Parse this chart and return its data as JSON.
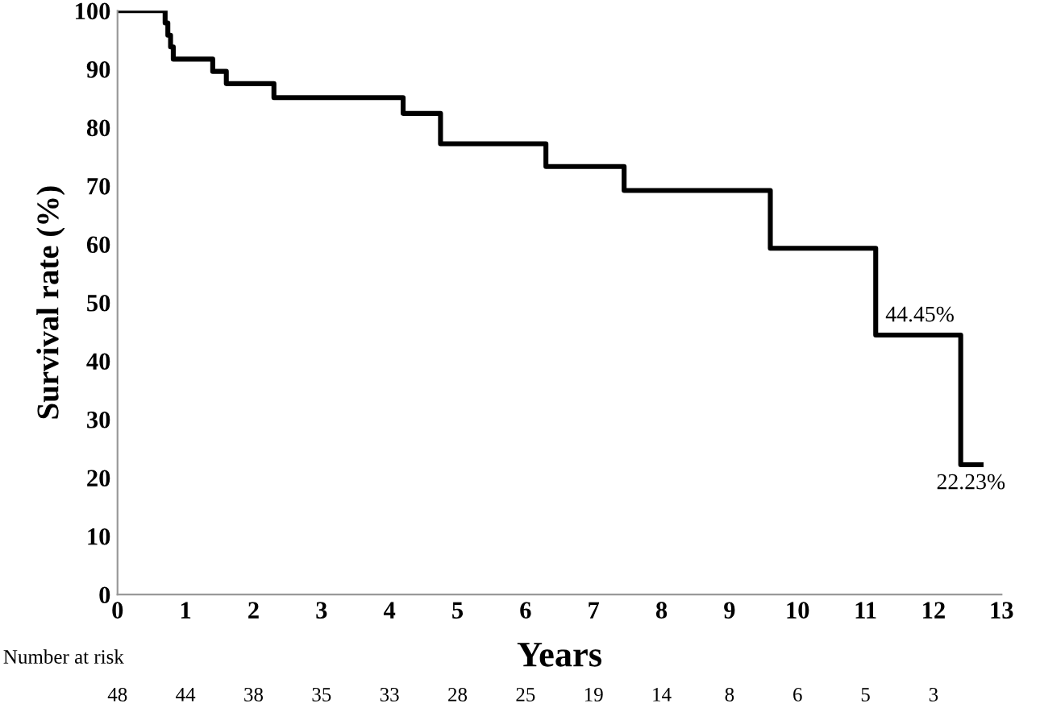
{
  "chart_data": {
    "type": "step",
    "xlabel": "Years",
    "ylabel": "Survival rate (%)",
    "x": [
      0,
      0.7,
      0.74,
      0.78,
      0.82,
      1.4,
      1.6,
      2.3,
      4.2,
      4.75,
      6.3,
      7.45,
      9.6,
      11.15,
      12.4,
      12.7
    ],
    "series": [
      {
        "color": "#000000",
        "values": [
          100,
          97.9,
          95.8,
          93.8,
          91.7,
          89.6,
          87.5,
          85.1,
          82.4,
          77.2,
          73.3,
          69.2,
          59.3,
          44.45,
          22.23,
          22.23
        ]
      }
    ],
    "xlim": [
      0,
      13
    ],
    "xticks": [
      0,
      1,
      2,
      3,
      4,
      5,
      6,
      7,
      8,
      9,
      10,
      11,
      12,
      13
    ],
    "ylim": [
      0,
      100
    ],
    "yticks": [
      0,
      10,
      20,
      30,
      40,
      50,
      60,
      70,
      80,
      90,
      100
    ],
    "grid": false,
    "legend": false,
    "marker": "none",
    "line_style": "solid",
    "annotations": [
      {
        "text": "44.45%",
        "x": 11.8,
        "y": 44.45
      },
      {
        "text": "22.23%",
        "x": 12.55,
        "y": 22.23
      },
      "Number at risk",
      "48",
      "44",
      "38",
      "35",
      "33",
      "28",
      "25",
      "19",
      "14",
      "8",
      "6",
      "5",
      "3"
    ]
  }
}
